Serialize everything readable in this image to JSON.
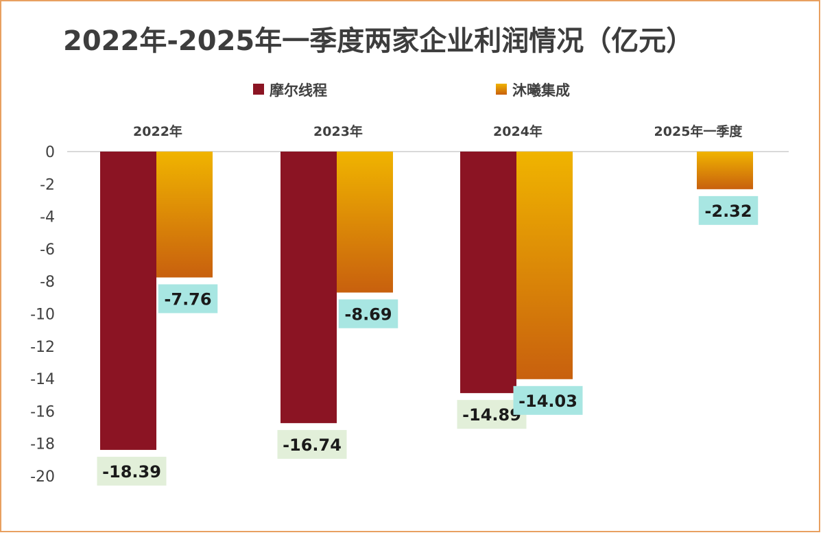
{
  "colors": {
    "series1": "#8B1423",
    "series2_top": "#F0B400",
    "series2_bottom": "#C8600E",
    "label_box_series1": "#E2EFD9",
    "label_box_series2": "#A8E6E2",
    "frame": "#E8A060",
    "axis_line": "#d9d9d9"
  },
  "chart_data": {
    "type": "bar",
    "title": "2022年-2025年一季度两家企业利润情况（亿元）",
    "categories": [
      "2022年",
      "2023年",
      "2024年",
      "2025年一季度"
    ],
    "series": [
      {
        "name": "摩尔线程",
        "values": [
          -18.39,
          -16.74,
          -14.89,
          null
        ],
        "labels": [
          "-18.39",
          "-16.74",
          "-14.89",
          ""
        ]
      },
      {
        "name": "沐曦集成",
        "values": [
          -7.76,
          -8.69,
          -14.03,
          -2.32
        ],
        "labels": [
          "-7.76",
          "-8.69",
          "-14.03",
          "-2.32"
        ]
      }
    ],
    "yticks": [
      "0",
      "-2",
      "-4",
      "-6",
      "-8",
      "-10",
      "-12",
      "-14",
      "-16",
      "-18",
      "-20"
    ],
    "ylim": [
      -20,
      0
    ],
    "legend_position": "top",
    "category_axis_position": "top",
    "grid": false
  }
}
